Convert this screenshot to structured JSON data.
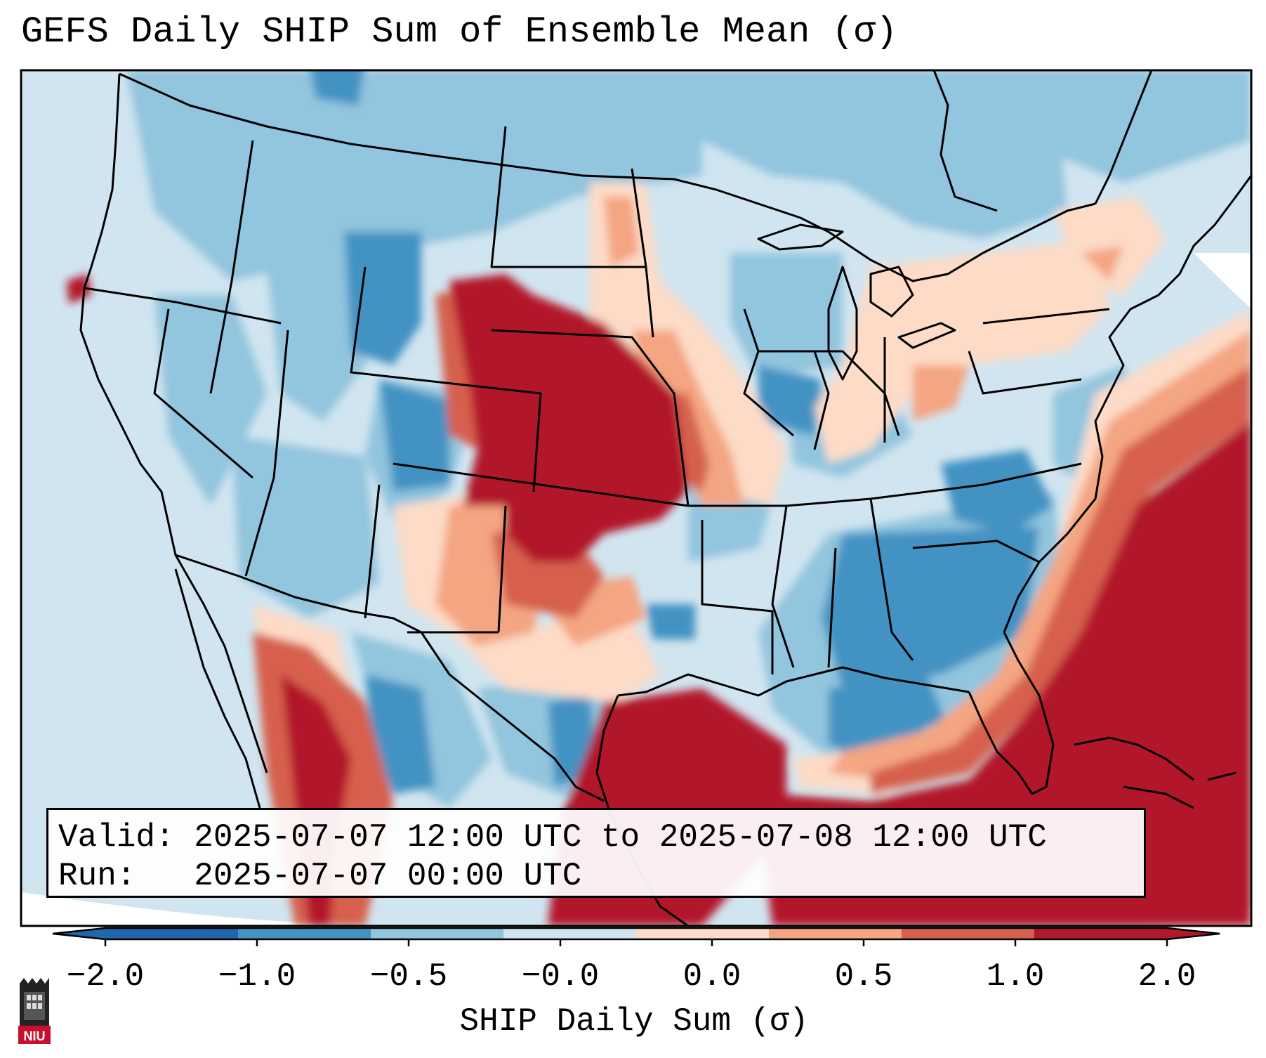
{
  "title": "GEFS Daily SHIP Sum of Ensemble Mean (σ)",
  "info_box": {
    "valid_line": "Valid: 2025-07-07 12:00 UTC to 2025-07-08 12:00 UTC",
    "run_line": "Run:   2025-07-07 00:00 UTC"
  },
  "colorbar": {
    "label": "SHIP Daily Sum (σ)",
    "ticks": [
      "−2.0",
      "−1.0",
      "−0.5",
      "−0.0",
      "0.0",
      "0.5",
      "1.0",
      "2.0"
    ],
    "colors": [
      "#2166ac",
      "#4393c3",
      "#92c5de",
      "#d1e5f0",
      "#fddbc7",
      "#f4a582",
      "#d6604d",
      "#b2182b"
    ],
    "extend": "both"
  },
  "logo": {
    "text": "NIU"
  }
}
